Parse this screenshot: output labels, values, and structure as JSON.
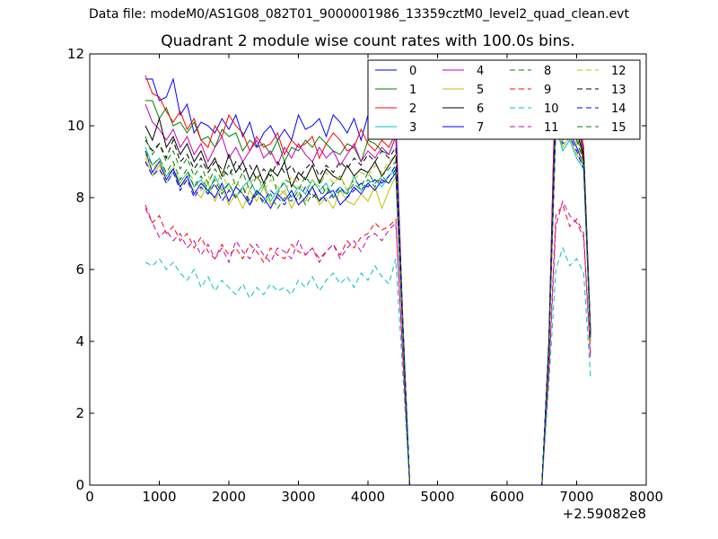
{
  "window": {
    "suptitle": "Data file: modeM0/AS1G08_082T01_9000001986_13359cztM0_level2_quad_clean.evt"
  },
  "chart_data": {
    "type": "line",
    "title": "Quadrant 2 module wise count rates with 100.0s bins.",
    "xlabel": "",
    "ylabel": "",
    "x_offset_label": "+2.59082e8",
    "xlim": [
      0,
      8000
    ],
    "ylim": [
      0,
      12
    ],
    "x_ticks": [
      0,
      1000,
      2000,
      3000,
      4000,
      5000,
      6000,
      7000,
      8000
    ],
    "y_ticks": [
      0,
      2,
      4,
      6,
      8,
      10,
      12
    ],
    "grid": false,
    "legend_position": "top-right",
    "legend_columns": 4,
    "x": [
      800,
      900,
      1000,
      1100,
      1200,
      1300,
      1400,
      1500,
      1600,
      1700,
      1800,
      1900,
      2000,
      2100,
      2200,
      2300,
      2400,
      2500,
      2600,
      2700,
      2800,
      2900,
      3000,
      3100,
      3200,
      3300,
      3400,
      3500,
      3600,
      3700,
      3800,
      3900,
      4000,
      4100,
      4200,
      4300,
      4400,
      4500,
      4600,
      6500,
      6600,
      6700,
      6800,
      6900,
      7000,
      7100,
      7200
    ],
    "series": [
      {
        "name": "0",
        "color": "#0000ff",
        "dash": "solid",
        "values": [
          11.3,
          11.3,
          10.7,
          10.8,
          11.3,
          10.3,
          10.6,
          9.8,
          10.1,
          10.0,
          9.8,
          10.2,
          9.9,
          10.3,
          9.7,
          10.1,
          9.4,
          9.8,
          10.0,
          9.6,
          9.9,
          9.6,
          10.3,
          9.9,
          10.0,
          10.2,
          9.7,
          10.3,
          10.1,
          9.8,
          10.2,
          9.6,
          10.3,
          10.4,
          10.0,
          9.9,
          10.2,
          4.6,
          0.0,
          0.0,
          4.0,
          11.8,
          11.3,
          11.7,
          10.5,
          9.4,
          4.2
        ]
      },
      {
        "name": "1",
        "color": "#008000",
        "dash": "solid",
        "values": [
          10.7,
          10.7,
          10.2,
          10.5,
          10.0,
          10.1,
          9.8,
          10.1,
          9.6,
          9.7,
          9.4,
          9.9,
          9.7,
          9.8,
          9.3,
          9.6,
          9.4,
          9.5,
          9.2,
          9.6,
          9.0,
          9.4,
          9.3,
          9.6,
          9.4,
          9.7,
          9.5,
          9.3,
          9.2,
          9.5,
          9.4,
          9.0,
          9.6,
          9.5,
          9.3,
          9.2,
          9.7,
          4.5,
          0.0,
          0.0,
          4.0,
          11.2,
          10.7,
          10.9,
          10.4,
          9.2,
          4.3
        ]
      },
      {
        "name": "2",
        "color": "#ff0000",
        "dash": "solid",
        "values": [
          11.4,
          10.9,
          10.8,
          10.4,
          10.1,
          10.4,
          9.9,
          10.2,
          9.6,
          9.4,
          10.0,
          9.7,
          10.3,
          10.0,
          9.8,
          9.3,
          9.7,
          9.4,
          9.5,
          9.8,
          9.2,
          9.6,
          9.4,
          9.5,
          9.7,
          9.1,
          9.5,
          9.8,
          9.6,
          9.3,
          9.4,
          9.9,
          9.5,
          9.3,
          9.6,
          9.4,
          9.8,
          4.5,
          0.0,
          0.0,
          3.9,
          11.8,
          11.5,
          10.8,
          10.8,
          9.3,
          4.2
        ]
      },
      {
        "name": "3",
        "color": "#00bfbf",
        "dash": "solid",
        "values": [
          9.4,
          8.9,
          9.1,
          8.6,
          8.8,
          8.4,
          8.7,
          8.3,
          8.5,
          8.1,
          8.6,
          8.2,
          8.4,
          8.0,
          8.3,
          8.5,
          8.1,
          8.4,
          7.9,
          8.2,
          8.4,
          8.0,
          8.3,
          8.1,
          8.5,
          8.2,
          8.4,
          8.0,
          8.3,
          8.1,
          8.6,
          8.2,
          8.4,
          8.5,
          8.3,
          8.6,
          8.8,
          4.3,
          0.0,
          0.0,
          3.8,
          10.0,
          9.3,
          9.6,
          9.1,
          8.8,
          4.0
        ]
      },
      {
        "name": "4",
        "color": "#bf00bf",
        "dash": "solid",
        "values": [
          10.6,
          10.1,
          9.9,
          9.6,
          9.9,
          9.4,
          9.7,
          9.2,
          9.5,
          9.0,
          9.4,
          9.7,
          9.1,
          9.4,
          9.0,
          9.3,
          9.6,
          9.1,
          9.3,
          8.9,
          9.4,
          9.1,
          9.5,
          9.2,
          9.0,
          9.4,
          9.1,
          9.3,
          8.9,
          9.2,
          9.5,
          9.0,
          9.3,
          9.1,
          9.4,
          9.2,
          9.7,
          4.5,
          0.0,
          0.0,
          3.9,
          11.4,
          11.2,
          10.4,
          10.5,
          9.0,
          4.2
        ]
      },
      {
        "name": "5",
        "color": "#bfbf00",
        "dash": "solid",
        "values": [
          9.1,
          8.6,
          8.9,
          8.4,
          8.7,
          8.3,
          8.5,
          8.2,
          8.0,
          8.4,
          7.9,
          8.3,
          7.8,
          8.1,
          7.7,
          8.2,
          7.9,
          8.3,
          7.8,
          8.0,
          8.2,
          7.7,
          8.1,
          7.9,
          8.3,
          7.8,
          8.0,
          7.7,
          8.2,
          7.9,
          7.8,
          8.1,
          7.9,
          8.3,
          7.7,
          8.2,
          8.6,
          4.3,
          0.0,
          0.0,
          3.7,
          10.0,
          9.4,
          9.7,
          9.2,
          8.9,
          4.0
        ]
      },
      {
        "name": "6",
        "color": "#000000",
        "dash": "solid",
        "values": [
          10.0,
          9.6,
          10.2,
          9.4,
          9.7,
          9.2,
          9.5,
          9.0,
          9.3,
          8.8,
          9.1,
          8.6,
          9.2,
          8.7,
          9.0,
          8.5,
          8.9,
          8.4,
          8.8,
          8.6,
          9.0,
          8.3,
          8.7,
          8.5,
          8.9,
          8.4,
          8.8,
          8.6,
          8.5,
          8.9,
          8.6,
          8.8,
          8.7,
          9.0,
          8.6,
          8.9,
          9.2,
          4.4,
          0.0,
          0.0,
          3.9,
          10.4,
          10.0,
          9.8,
          9.9,
          9.1,
          4.1
        ]
      },
      {
        "name": "7",
        "color": "#0000ff",
        "dash": "solid",
        "values": [
          9.3,
          8.7,
          9.0,
          8.5,
          8.8,
          8.3,
          8.6,
          8.1,
          8.4,
          8.2,
          8.0,
          8.4,
          7.9,
          8.3,
          8.1,
          7.8,
          8.2,
          8.0,
          7.7,
          8.1,
          7.9,
          8.2,
          7.8,
          8.0,
          8.3,
          7.9,
          8.1,
          8.2,
          7.8,
          8.0,
          8.3,
          8.1,
          8.4,
          8.2,
          8.5,
          8.4,
          8.7,
          4.3,
          0.0,
          0.0,
          3.8,
          10.2,
          9.6,
          9.8,
          9.4,
          8.9,
          4.1
        ]
      },
      {
        "name": "8",
        "color": "#008000",
        "dash": "dashed",
        "values": [
          9.7,
          9.2,
          9.5,
          9.0,
          9.3,
          8.8,
          9.1,
          8.6,
          8.9,
          8.4,
          8.8,
          8.5,
          8.9,
          8.3,
          8.7,
          8.2,
          8.6,
          8.3,
          8.8,
          8.1,
          8.5,
          8.4,
          8.2,
          8.6,
          8.3,
          8.5,
          8.1,
          8.4,
          8.6,
          8.2,
          8.5,
          8.3,
          8.7,
          8.4,
          8.6,
          8.8,
          9.0,
          4.4,
          0.0,
          0.0,
          3.8,
          10.4,
          9.8,
          10.1,
          9.7,
          9.0,
          4.1
        ]
      },
      {
        "name": "9",
        "color": "#ff0000",
        "dash": "dashed",
        "values": [
          7.8,
          7.3,
          7.5,
          7.0,
          7.2,
          6.8,
          7.0,
          6.6,
          6.9,
          6.5,
          6.3,
          6.7,
          6.4,
          6.6,
          6.3,
          6.7,
          6.5,
          6.2,
          6.6,
          6.4,
          6.3,
          6.7,
          6.5,
          6.4,
          6.6,
          6.3,
          6.5,
          6.7,
          6.4,
          6.8,
          6.6,
          6.9,
          7.0,
          7.3,
          7.1,
          7.2,
          7.4,
          3.6,
          0.0,
          0.0,
          3.2,
          7.5,
          7.8,
          7.2,
          7.4,
          7.0,
          3.6
        ]
      },
      {
        "name": "10",
        "color": "#00bfbf",
        "dash": "dashed",
        "values": [
          6.2,
          6.1,
          6.3,
          6.0,
          6.2,
          5.9,
          5.7,
          6.0,
          5.5,
          5.8,
          5.4,
          5.7,
          5.5,
          5.3,
          5.6,
          5.2,
          5.5,
          5.3,
          5.6,
          5.4,
          5.5,
          5.3,
          5.7,
          5.5,
          5.8,
          5.4,
          5.7,
          5.9,
          5.6,
          5.8,
          5.5,
          5.9,
          5.7,
          6.1,
          5.8,
          5.6,
          6.3,
          3.1,
          0.0,
          0.0,
          2.8,
          6.0,
          6.6,
          6.1,
          6.3,
          5.9,
          3.0
        ]
      },
      {
        "name": "11",
        "color": "#bf00bf",
        "dash": "dashed",
        "values": [
          7.7,
          7.3,
          6.9,
          7.1,
          6.8,
          7.0,
          6.6,
          6.8,
          6.4,
          6.7,
          6.3,
          6.6,
          6.2,
          6.8,
          6.5,
          6.3,
          6.7,
          6.4,
          6.2,
          6.6,
          6.5,
          6.3,
          6.8,
          6.4,
          6.6,
          6.2,
          6.5,
          6.7,
          6.3,
          6.6,
          6.8,
          6.5,
          6.9,
          7.0,
          6.8,
          7.1,
          7.3,
          3.6,
          0.0,
          0.0,
          3.1,
          7.2,
          7.9,
          7.5,
          7.3,
          6.9,
          3.5
        ]
      },
      {
        "name": "12",
        "color": "#bfbf00",
        "dash": "dashed",
        "values": [
          9.2,
          8.8,
          9.0,
          8.6,
          8.9,
          8.4,
          8.7,
          8.5,
          8.2,
          8.6,
          8.3,
          8.7,
          8.2,
          8.5,
          8.1,
          8.4,
          8.6,
          8.2,
          8.5,
          8.3,
          8.1,
          8.6,
          8.4,
          8.2,
          8.5,
          8.3,
          8.7,
          8.4,
          8.6,
          8.2,
          8.5,
          8.7,
          8.6,
          8.9,
          8.7,
          9.0,
          9.2,
          4.4,
          0.0,
          0.0,
          3.8,
          10.1,
          9.6,
          9.9,
          9.5,
          8.9,
          4.1
        ]
      },
      {
        "name": "13",
        "color": "#000000",
        "dash": "dashed",
        "values": [
          9.6,
          9.3,
          9.5,
          9.1,
          9.6,
          9.0,
          9.2,
          8.8,
          9.1,
          8.7,
          9.0,
          8.8,
          8.6,
          9.0,
          8.7,
          8.9,
          8.5,
          8.8,
          8.6,
          9.0,
          8.7,
          8.9,
          8.5,
          8.8,
          9.0,
          8.6,
          8.9,
          8.7,
          9.0,
          8.8,
          9.1,
          8.9,
          9.2,
          9.0,
          9.3,
          9.1,
          9.4,
          4.5,
          0.0,
          0.0,
          3.9,
          10.6,
          10.1,
          10.3,
          9.8,
          9.2,
          4.2
        ]
      },
      {
        "name": "14",
        "color": "#0000ff",
        "dash": "dashed",
        "values": [
          9.0,
          8.6,
          8.8,
          8.4,
          8.7,
          8.2,
          8.5,
          8.0,
          8.3,
          8.1,
          8.4,
          7.9,
          8.2,
          8.0,
          8.3,
          7.8,
          8.1,
          7.9,
          8.2,
          8.0,
          7.8,
          8.1,
          7.9,
          8.3,
          8.0,
          8.2,
          7.9,
          8.1,
          8.3,
          8.0,
          8.2,
          8.4,
          8.3,
          8.5,
          8.4,
          8.6,
          8.9,
          4.3,
          0.0,
          0.0,
          3.8,
          10.0,
          9.5,
          9.7,
          9.3,
          8.8,
          4.1
        ]
      },
      {
        "name": "15",
        "color": "#008000",
        "dash": "dashed",
        "values": [
          9.3,
          8.9,
          9.1,
          8.7,
          9.0,
          8.5,
          8.8,
          8.3,
          8.6,
          8.2,
          8.5,
          8.1,
          8.4,
          8.0,
          8.3,
          7.9,
          8.2,
          7.8,
          8.1,
          7.7,
          8.0,
          7.9,
          8.2,
          7.8,
          8.1,
          7.9,
          8.3,
          8.0,
          8.2,
          8.1,
          8.4,
          8.2,
          8.5,
          8.3,
          8.6,
          8.4,
          8.8,
          4.3,
          0.0,
          0.0,
          3.8,
          10.5,
          9.9,
          10.2,
          9.6,
          9.0,
          4.1
        ]
      }
    ]
  }
}
